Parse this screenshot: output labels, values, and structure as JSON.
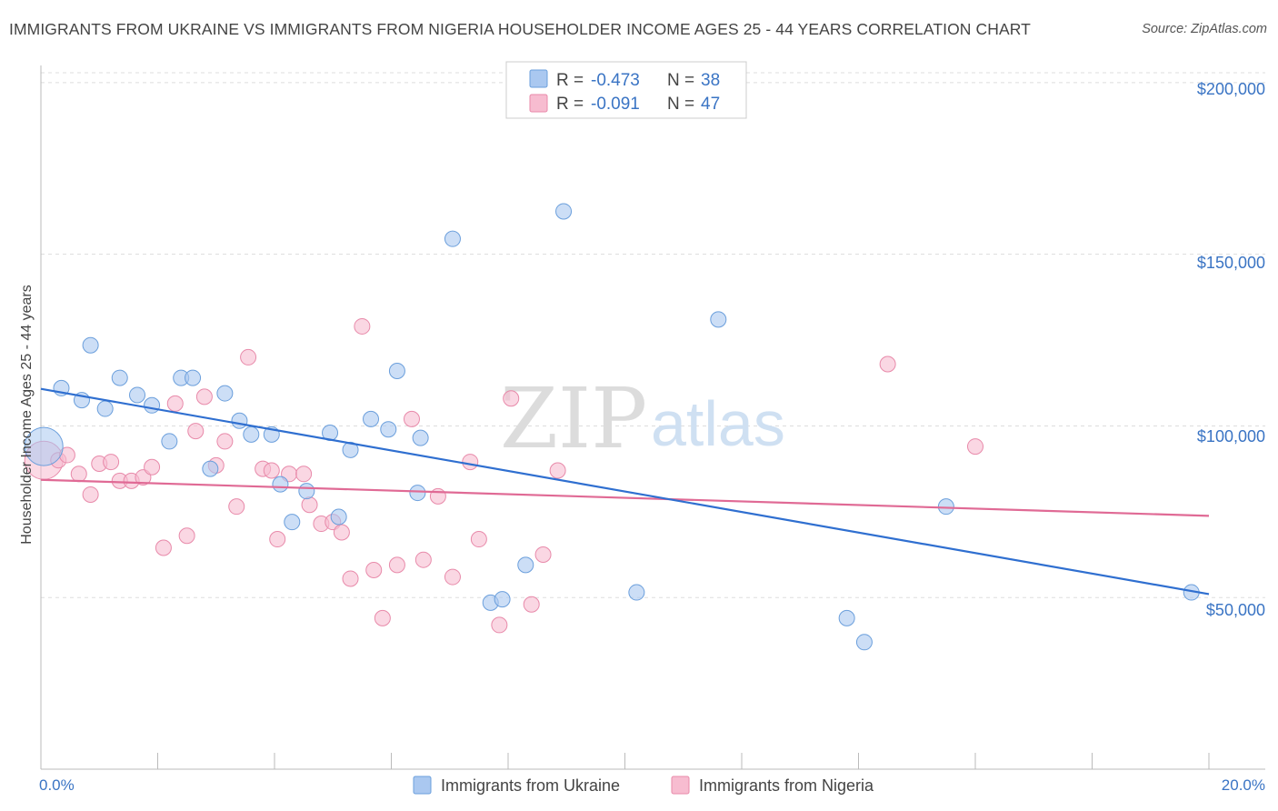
{
  "title": "IMMIGRANTS FROM UKRAINE VS IMMIGRANTS FROM NIGERIA HOUSEHOLDER INCOME AGES 25 - 44 YEARS CORRELATION CHART",
  "source": "Source: ZipAtlas.com",
  "watermark": {
    "left": "ZIP",
    "right": "atlas"
  },
  "colors": {
    "ukraine_fill": "#aac8f0",
    "ukraine_stroke": "#6b9fdc",
    "ukraine_line": "#2f6fd0",
    "nigeria_fill": "#f7bcd0",
    "nigeria_stroke": "#e88aaa",
    "nigeria_line": "#e06a95",
    "tick_text": "#3a74c4",
    "grid": "#dddddd"
  },
  "legend": {
    "rows": [
      {
        "r_label": "R = ",
        "r_value": "-0.473",
        "n_label": "N = ",
        "n_value": "38"
      },
      {
        "r_label": "R = ",
        "r_value": "-0.091",
        "n_label": "N = ",
        "n_value": "47"
      }
    ]
  },
  "bottom_legend": [
    "Immigrants from Ukraine",
    "Immigrants from Nigeria"
  ],
  "chart_data": {
    "type": "scatter",
    "title": "IMMIGRANTS FROM UKRAINE VS IMMIGRANTS FROM NIGERIA HOUSEHOLDER INCOME AGES 25 - 44 YEARS CORRELATION CHART",
    "xlabel": "",
    "ylabel": "Householder Income Ages 25 - 44 years",
    "xlim": [
      0,
      20
    ],
    "ylim": [
      0,
      205000
    ],
    "x_tick_labels": [
      "0.0%",
      "20.0%"
    ],
    "y_ticks": [
      50000,
      100000,
      150000,
      200000
    ],
    "y_tick_labels": [
      "$50,000",
      "$100,000",
      "$150,000",
      "$200,000"
    ],
    "grid": true,
    "legend_placement": "top-center",
    "series": [
      {
        "name": "Immigrants from Ukraine",
        "r": -0.473,
        "n": 38,
        "trend": {
          "x": [
            0,
            20
          ],
          "y": [
            110800,
            51000
          ]
        },
        "points": [
          {
            "x": 0.05,
            "y": 94000,
            "big": true
          },
          {
            "x": 0.35,
            "y": 111000
          },
          {
            "x": 0.7,
            "y": 107500
          },
          {
            "x": 0.85,
            "y": 123500
          },
          {
            "x": 1.1,
            "y": 105000
          },
          {
            "x": 1.35,
            "y": 114000
          },
          {
            "x": 1.65,
            "y": 109000
          },
          {
            "x": 1.9,
            "y": 106000
          },
          {
            "x": 2.2,
            "y": 95500
          },
          {
            "x": 2.4,
            "y": 114000
          },
          {
            "x": 2.6,
            "y": 114000
          },
          {
            "x": 2.9,
            "y": 87500
          },
          {
            "x": 3.15,
            "y": 109500
          },
          {
            "x": 3.4,
            "y": 101500
          },
          {
            "x": 3.6,
            "y": 97500
          },
          {
            "x": 3.95,
            "y": 97500
          },
          {
            "x": 4.1,
            "y": 83000
          },
          {
            "x": 4.3,
            "y": 72000
          },
          {
            "x": 4.55,
            "y": 81000
          },
          {
            "x": 4.95,
            "y": 98000
          },
          {
            "x": 5.1,
            "y": 73500
          },
          {
            "x": 5.3,
            "y": 93000
          },
          {
            "x": 5.65,
            "y": 102000
          },
          {
            "x": 5.95,
            "y": 99000
          },
          {
            "x": 6.1,
            "y": 116000
          },
          {
            "x": 6.45,
            "y": 80500
          },
          {
            "x": 6.5,
            "y": 96500
          },
          {
            "x": 7.05,
            "y": 154500
          },
          {
            "x": 7.7,
            "y": 48500
          },
          {
            "x": 7.9,
            "y": 49500
          },
          {
            "x": 8.3,
            "y": 59500
          },
          {
            "x": 8.95,
            "y": 162500
          },
          {
            "x": 10.2,
            "y": 51500
          },
          {
            "x": 11.6,
            "y": 131000
          },
          {
            "x": 13.8,
            "y": 44000
          },
          {
            "x": 14.1,
            "y": 37000
          },
          {
            "x": 15.5,
            "y": 76500
          },
          {
            "x": 19.7,
            "y": 51500
          }
        ]
      },
      {
        "name": "Immigrants from Nigeria",
        "r": -0.091,
        "n": 47,
        "trend": {
          "x": [
            0,
            20
          ],
          "y": [
            84300,
            73800
          ]
        },
        "points": [
          {
            "x": 0.05,
            "y": 90000,
            "big": true
          },
          {
            "x": 0.3,
            "y": 90000
          },
          {
            "x": 0.45,
            "y": 91500
          },
          {
            "x": 0.65,
            "y": 86000
          },
          {
            "x": 0.85,
            "y": 80000
          },
          {
            "x": 1.0,
            "y": 89000
          },
          {
            "x": 1.2,
            "y": 89500
          },
          {
            "x": 1.35,
            "y": 84000
          },
          {
            "x": 1.55,
            "y": 84000
          },
          {
            "x": 1.75,
            "y": 85000
          },
          {
            "x": 1.9,
            "y": 88000
          },
          {
            "x": 2.1,
            "y": 64500
          },
          {
            "x": 2.3,
            "y": 106500
          },
          {
            "x": 2.5,
            "y": 68000
          },
          {
            "x": 2.65,
            "y": 98500
          },
          {
            "x": 2.8,
            "y": 108500
          },
          {
            "x": 3.0,
            "y": 88500
          },
          {
            "x": 3.15,
            "y": 95500
          },
          {
            "x": 3.35,
            "y": 76500
          },
          {
            "x": 3.55,
            "y": 120000
          },
          {
            "x": 3.8,
            "y": 87500
          },
          {
            "x": 3.95,
            "y": 87000
          },
          {
            "x": 4.05,
            "y": 67000
          },
          {
            "x": 4.25,
            "y": 86000
          },
          {
            "x": 4.5,
            "y": 86000
          },
          {
            "x": 4.6,
            "y": 77000
          },
          {
            "x": 4.8,
            "y": 71500
          },
          {
            "x": 5.0,
            "y": 72000
          },
          {
            "x": 5.15,
            "y": 69000
          },
          {
            "x": 5.3,
            "y": 55500
          },
          {
            "x": 5.5,
            "y": 129000
          },
          {
            "x": 5.7,
            "y": 58000
          },
          {
            "x": 5.85,
            "y": 44000
          },
          {
            "x": 6.1,
            "y": 59500
          },
          {
            "x": 6.35,
            "y": 102000
          },
          {
            "x": 6.55,
            "y": 61000
          },
          {
            "x": 6.8,
            "y": 79500
          },
          {
            "x": 7.05,
            "y": 56000
          },
          {
            "x": 7.35,
            "y": 89500
          },
          {
            "x": 7.5,
            "y": 67000
          },
          {
            "x": 7.85,
            "y": 42000
          },
          {
            "x": 8.05,
            "y": 108000
          },
          {
            "x": 8.4,
            "y": 48000
          },
          {
            "x": 8.6,
            "y": 62500
          },
          {
            "x": 8.85,
            "y": 87000
          },
          {
            "x": 14.5,
            "y": 118000
          },
          {
            "x": 16.0,
            "y": 94000
          }
        ]
      }
    ]
  }
}
